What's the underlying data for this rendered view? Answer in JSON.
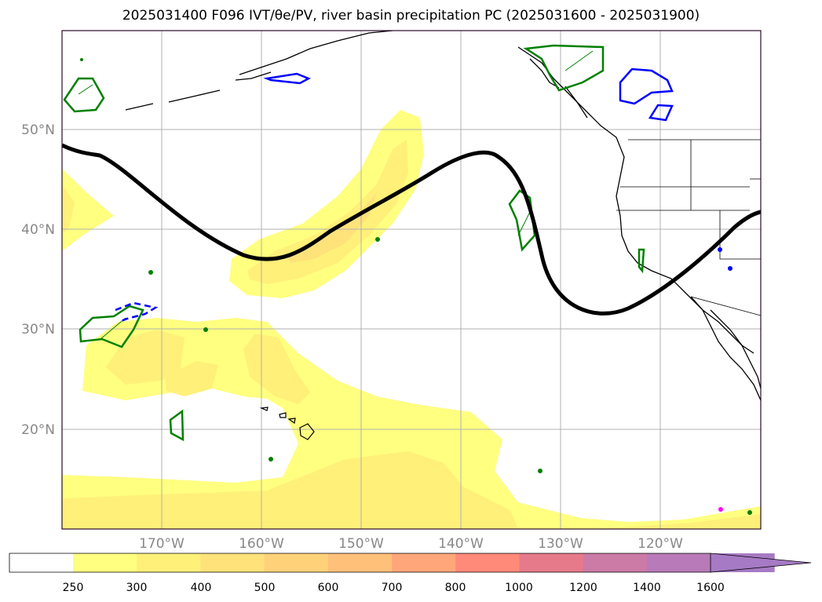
{
  "title": "2025031400 F096 IVT/θe/PV, river basin precipitation PC (2025031600 - 2025031900)",
  "map": {
    "lon_range": [
      -180,
      -110
    ],
    "lat_range": [
      10,
      60
    ],
    "lon_ticks": [
      "170°W",
      "160°W",
      "150°W",
      "140°W",
      "130°W",
      "120°W"
    ],
    "lat_ticks": [
      "50°N",
      "40°N",
      "30°N",
      "20°N"
    ],
    "gridlines": true,
    "features": [
      "ivt-shading",
      "jet-stream-contour",
      "river-basin-outlines-green",
      "river-basin-outlines-blue",
      "coastlines",
      "state-borders"
    ]
  },
  "colorbar": {
    "levels": [
      "250",
      "300",
      "400",
      "500",
      "600",
      "700",
      "800",
      "1000",
      "1200",
      "1400",
      "1600"
    ],
    "colors": [
      "#ffffff",
      "#ffff80",
      "#fff07a",
      "#ffe27a",
      "#ffd27a",
      "#ffc07a",
      "#ffa77a",
      "#ff8a7a",
      "#e67a8a",
      "#cc7aa6",
      "#b87ab8",
      "#a67ac4"
    ],
    "extend": "max"
  }
}
